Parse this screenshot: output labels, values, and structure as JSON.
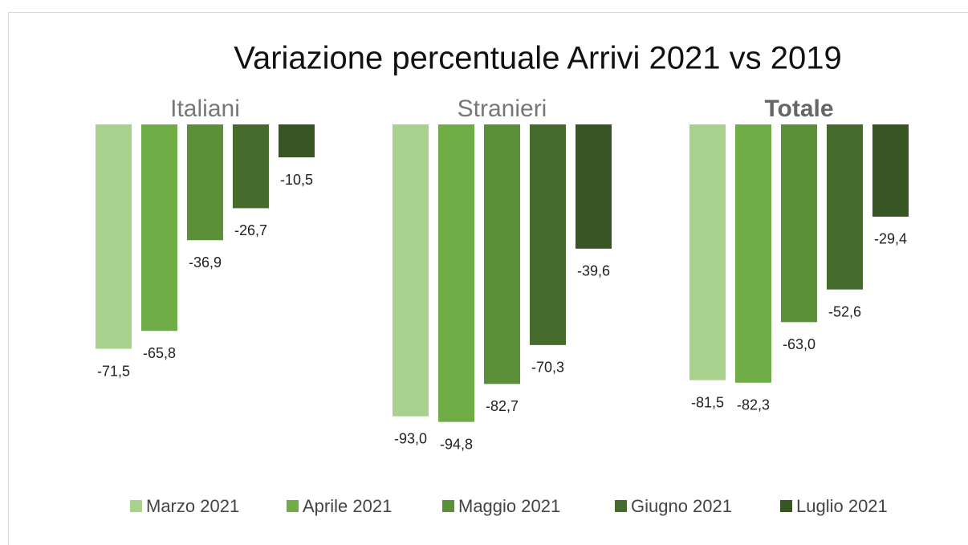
{
  "chart_data": {
    "type": "bar",
    "title": "Variazione percentuale Arrivi 2021 vs 2019",
    "categories": [
      "Italiani",
      "Stranieri",
      "Totale"
    ],
    "ylim": [
      -100,
      0
    ],
    "legend": "bottom",
    "series": [
      {
        "name": "Marzo 2021",
        "color": "#a9d18e",
        "values": [
          -71.5,
          -93.0,
          -81.5
        ],
        "value_labels": [
          "-71,5",
          "-93,0",
          "-81,5"
        ]
      },
      {
        "name": "Aprile 2021",
        "color": "#70ad47",
        "values": [
          -65.8,
          -94.8,
          -82.3
        ],
        "value_labels": [
          "-65,8",
          "-94,8",
          "-82,3"
        ]
      },
      {
        "name": "Maggio 2021",
        "color": "#5b9039",
        "values": [
          -36.9,
          -82.7,
          -63.0
        ],
        "value_labels": [
          "-36,9",
          "-82,7",
          "-63,0"
        ]
      },
      {
        "name": "Giugno 2021",
        "color": "#456c2c",
        "values": [
          -26.7,
          -70.3,
          -52.6
        ],
        "value_labels": [
          "-26,7",
          "-70,3",
          "-52,6"
        ]
      },
      {
        "name": "Luglio 2021",
        "color": "#375623",
        "values": [
          -10.5,
          -39.6,
          -29.4
        ],
        "value_labels": [
          "-10,5",
          "-39,6",
          "-29,4"
        ]
      }
    ]
  }
}
